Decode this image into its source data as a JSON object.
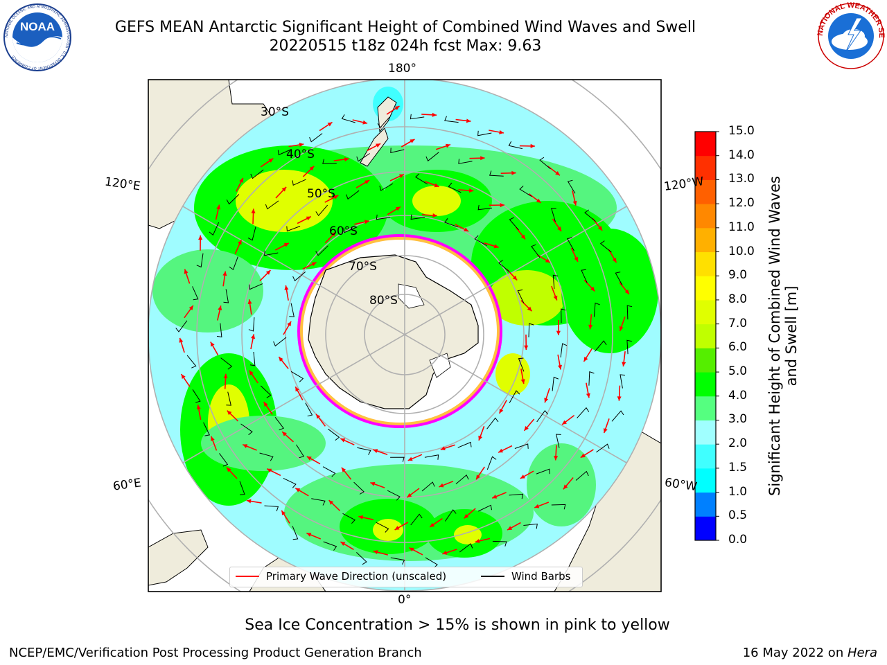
{
  "header": {
    "title_line1": "GEFS MEAN Antarctic Significant Height of Combined Wind Waves and Swell",
    "title_line2": "20220515 t18z 024h fcst   Max: 9.63",
    "noaa_logo_text": "NOAA",
    "noaa_ring_text": "NATIONAL OCEANIC AND ATMOSPHERIC ADMINISTRATION · U.S. DEPARTMENT OF COMMERCE",
    "nws_ring_text": "NATIONAL WEATHER SERVICE"
  },
  "map": {
    "projection": "south-polar-stereographic",
    "longitude_labels": {
      "top": "180°",
      "bottom": "0°",
      "left_upper": "120°E",
      "right_upper": "120°W",
      "left_lower": "60°E",
      "right_lower": "60°W"
    },
    "latitude_labels": [
      "30°S",
      "40°S",
      "50°S",
      "60°S",
      "70°S",
      "80°S"
    ],
    "legend": {
      "wave_direction": "Primary Wave Direction (unscaled)",
      "wind_barbs": "Wind Barbs"
    }
  },
  "colorbar": {
    "title": "Significant Height of Combined Wind Waves and Swell [m]",
    "ticks": [
      "0.0",
      "0.5",
      "1.0",
      "1.5",
      "2.0",
      "3.0",
      "4.0",
      "5.0",
      "6.0",
      "7.0",
      "8.0",
      "9.0",
      "10.0",
      "11.0",
      "12.0",
      "13.0",
      "14.0",
      "15.0"
    ],
    "colors": [
      "#0000ff",
      "#0080ff",
      "#00ffff",
      "#40ffff",
      "#a0ffff",
      "#55ff80",
      "#00ff00",
      "#55ee00",
      "#c0ff00",
      "#e0ff00",
      "#ffff00",
      "#ffe000",
      "#ffb000",
      "#ff8800",
      "#ff6000",
      "#ff3000",
      "#ff0000"
    ]
  },
  "subtitle": "Sea Ice Concentration > 15% is shown in pink to yellow",
  "footer": {
    "left": "NCEP/EMC/Verification Post Processing Product Generation Branch",
    "date": "16 May 2022 on ",
    "host": "Hera"
  }
}
